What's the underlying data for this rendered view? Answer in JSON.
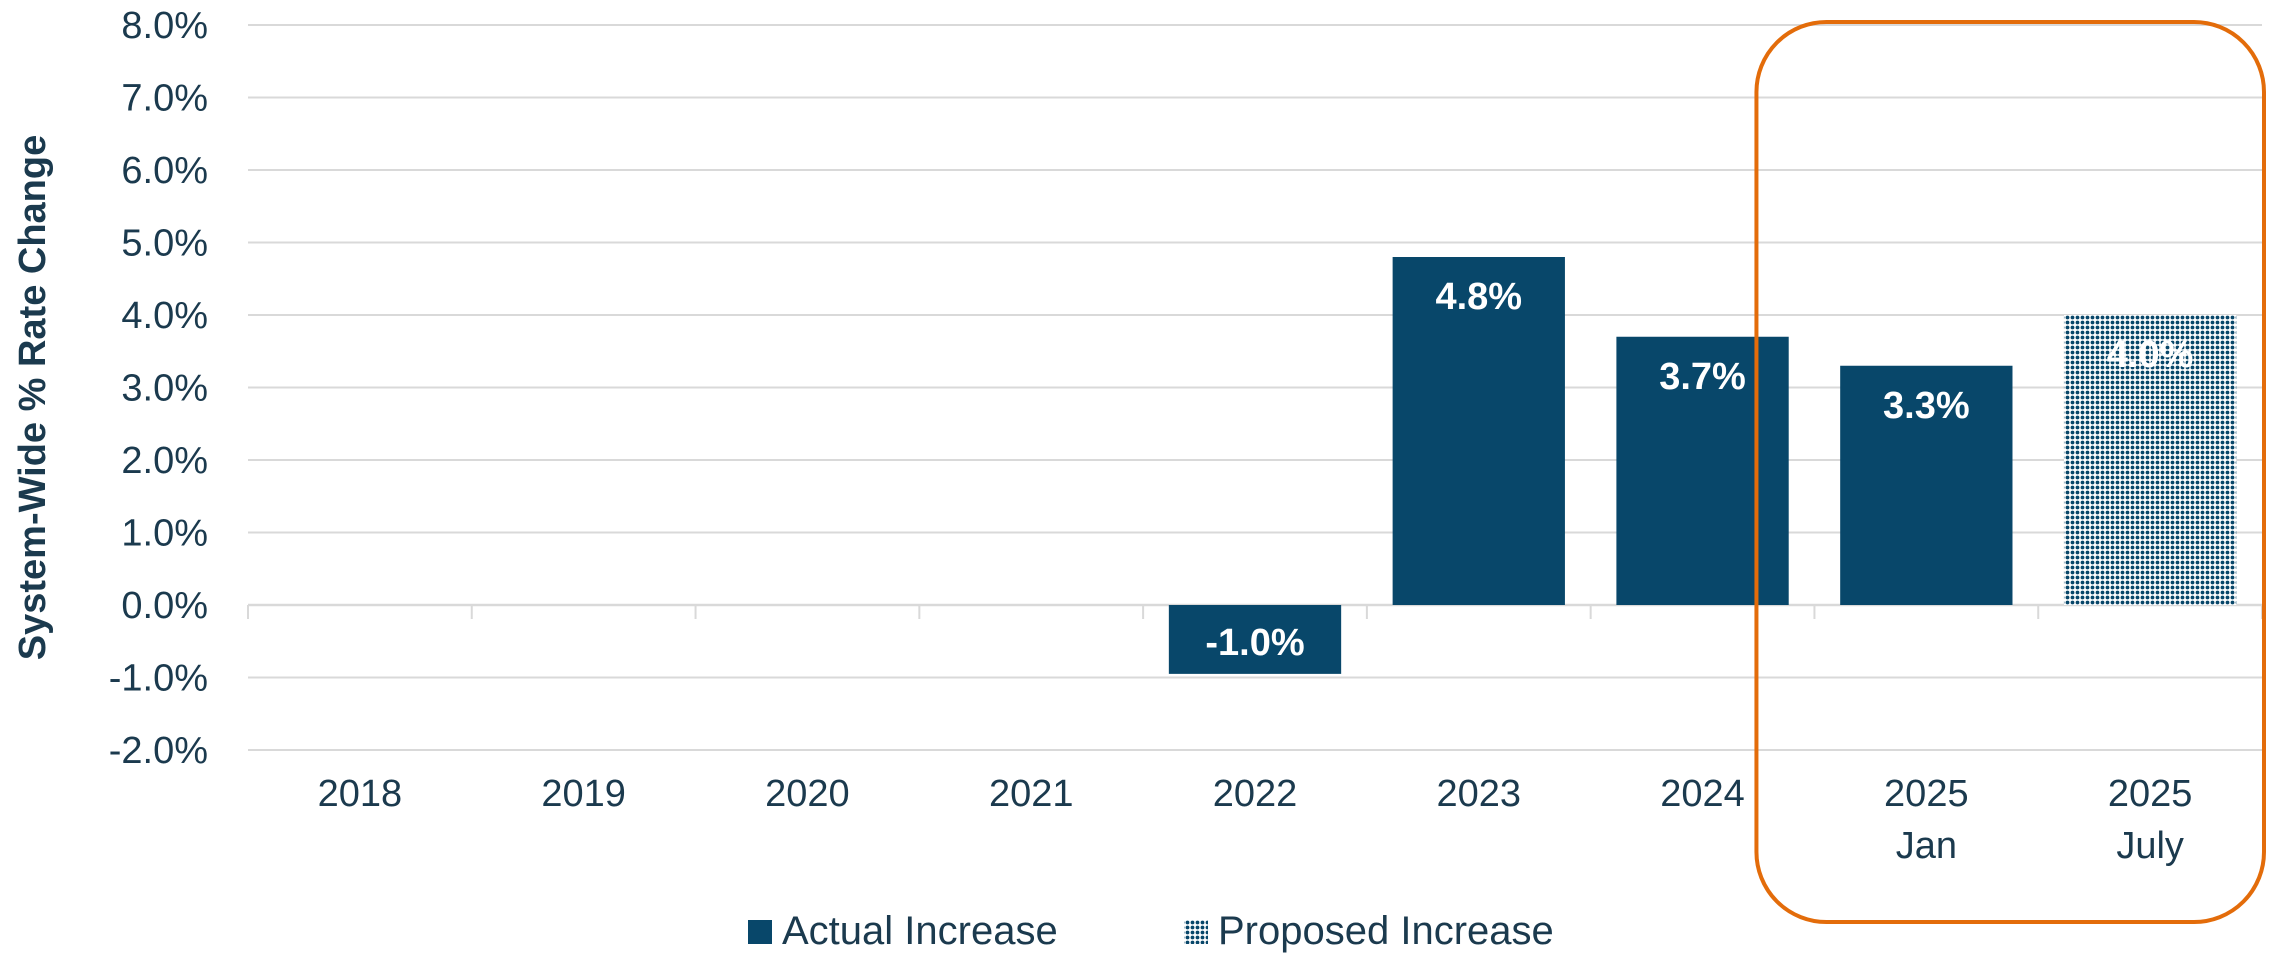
{
  "chart_data": {
    "type": "bar",
    "categories": [
      [
        "2018"
      ],
      [
        "2019"
      ],
      [
        "2020"
      ],
      [
        "2021"
      ],
      [
        "2022"
      ],
      [
        "2023"
      ],
      [
        "2024"
      ],
      [
        "2025",
        "Jan"
      ],
      [
        "2025",
        "July"
      ]
    ],
    "series": [
      {
        "name": "Actual Increase",
        "values": [
          null,
          null,
          null,
          null,
          -0.95,
          4.8,
          3.7,
          3.3,
          null
        ],
        "labels": [
          "",
          "",
          "",
          "",
          "-1.0%",
          "4.8%",
          "3.7%",
          "3.3%",
          ""
        ]
      },
      {
        "name": "Proposed Increase",
        "values": [
          null,
          null,
          null,
          null,
          null,
          null,
          null,
          null,
          4.0
        ],
        "labels": [
          "",
          "",
          "",
          "",
          "",
          "",
          "",
          "",
          "4.0%"
        ]
      }
    ],
    "ylabel": "System-Wide % Rate Change",
    "xlabel": "",
    "ylim": [
      -2.0,
      8.0
    ],
    "yticks": [
      "-2.0%",
      "-1.0%",
      "0.0%",
      "1.0%",
      "2.0%",
      "3.0%",
      "4.0%",
      "5.0%",
      "6.0%",
      "7.0%",
      "8.0%"
    ],
    "grid": true,
    "legend_position": "bottom",
    "highlight": {
      "categories": [
        "2025 Jan",
        "2025 July"
      ],
      "color": "#e36c0a"
    },
    "colors": {
      "actual": "#08476a",
      "proposed": "#08476a",
      "grid": "#d9d9d9",
      "text": "#1b3a4e"
    }
  }
}
